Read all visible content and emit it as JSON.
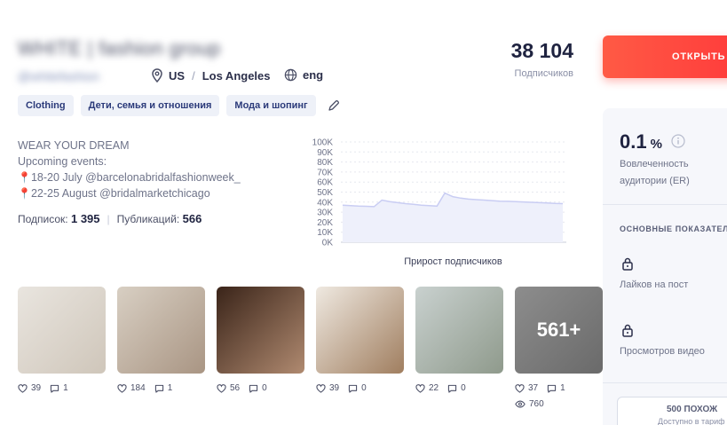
{
  "profile": {
    "name_blurred": "WHITE | fashion group",
    "handle_blurred": "@whitefashion",
    "location": "US / Los Angeles",
    "location_country": "US",
    "location_city": "Los Angeles",
    "language": "eng",
    "subscribers": "38 104",
    "subscribers_label": "Подписчиков"
  },
  "tags": [
    "Clothing",
    "Дети, семья и отношения",
    "Мода и шопинг"
  ],
  "bio": {
    "line1": "WEAR YOUR DREAM",
    "line2": "Upcoming events:",
    "line3": "18-20 July @barcelonabridalfashionweek_",
    "line4": "22-25 August @bridalmarketchicago"
  },
  "stats": {
    "following_label": "Подписок:",
    "following": "1 395",
    "posts_label": "Публикаций:",
    "posts": "566"
  },
  "chart_data": {
    "type": "area",
    "title": "Прирост подписчиков",
    "xlabel": "",
    "ylabel": "",
    "yticks": [
      "100K",
      "90K",
      "80K",
      "70K",
      "60K",
      "50K",
      "40K",
      "30K",
      "20K",
      "10K",
      "0K"
    ],
    "ylim": [
      0,
      100000
    ],
    "grid": true,
    "series": [
      {
        "values": [
          37000,
          36500,
          36000,
          35800,
          35500,
          42000,
          40500,
          39500,
          38500,
          37800,
          37000,
          36500,
          36000,
          49000,
          45500,
          44000,
          43000,
          42500,
          42000,
          41500,
          41000,
          40800,
          40500,
          40200,
          39800,
          39500,
          39200,
          38800,
          38500
        ]
      }
    ],
    "color": "#c9cdf3"
  },
  "posts": [
    {
      "likes": "39",
      "comments": "1",
      "color1": "#e9e5df",
      "color2": "#cfc6ba"
    },
    {
      "likes": "184",
      "comments": "1",
      "color1": "#d8cfc3",
      "color2": "#a99583"
    },
    {
      "likes": "56",
      "comments": "0",
      "color1": "#3a2419",
      "color2": "#b08a70"
    },
    {
      "likes": "39",
      "comments": "0",
      "color1": "#efe9e1",
      "color2": "#a07e5f"
    },
    {
      "likes": "22",
      "comments": "0",
      "color1": "#c9d1cf",
      "color2": "#8f9a8c"
    },
    {
      "likes": "37",
      "comments": "1",
      "views": "760",
      "more": "561+",
      "color1": "#8d8d8d",
      "color2": "#6a6a6a"
    }
  ],
  "sidebar": {
    "cta_label": "ОТКРЫТЬ С",
    "er_value": "0.1",
    "er_unit": "%",
    "er_label": "Вовлеченность аудитории (ER)",
    "section_title": "ОСНОВНЫЕ ПОКАЗАТЕЛ",
    "metric_likes": "Лайков на пост",
    "metric_views": "Просмотров видео",
    "similar_label": "500 ПОХОЖ",
    "similar_sub": "Доступно в тариф"
  }
}
